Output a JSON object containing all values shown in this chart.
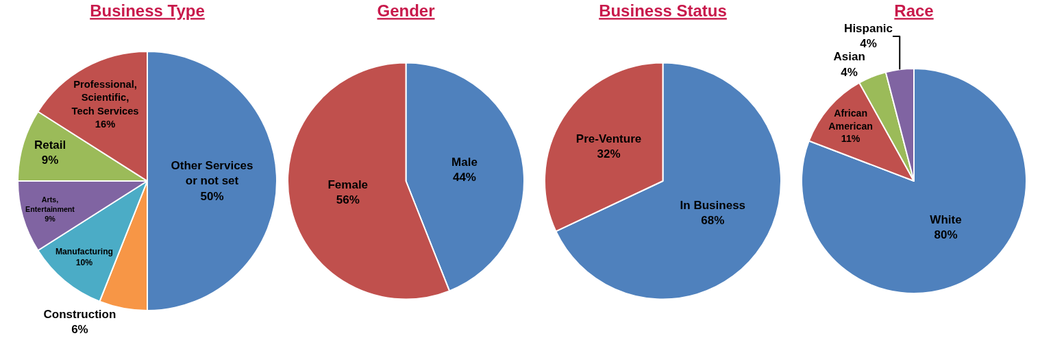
{
  "chart_data": [
    {
      "type": "pie",
      "title": "Business Type",
      "categories": [
        "Other Services or not set",
        "Construction",
        "Manufacturing",
        "Arts, Entertainment",
        "Retail",
        "Professional, Scientific, Tech Services"
      ],
      "values": [
        50,
        6,
        10,
        9,
        9,
        16
      ],
      "value_labels": [
        "50%",
        "6%",
        "10%",
        "9%",
        "9%",
        "16%"
      ],
      "colors": [
        "#4f81bd",
        "#f79646",
        "#4bacc6",
        "#8064a2",
        "#9bbb59",
        "#c0504d"
      ],
      "legend": false
    },
    {
      "type": "pie",
      "title": "Gender",
      "categories": [
        "Male",
        "Female"
      ],
      "values": [
        44,
        56
      ],
      "value_labels": [
        "44%",
        "56%"
      ],
      "colors": [
        "#4f81bd",
        "#c0504d"
      ],
      "legend": false
    },
    {
      "type": "pie",
      "title": "Business Status",
      "categories": [
        "In Business",
        "Pre-Venture"
      ],
      "values": [
        68,
        32
      ],
      "value_labels": [
        "68%",
        "32%"
      ],
      "colors": [
        "#4f81bd",
        "#c0504d"
      ],
      "legend": false
    },
    {
      "type": "pie",
      "title": "Race",
      "categories": [
        "White",
        "African American",
        "Asian",
        "Hispanic"
      ],
      "values": [
        80,
        11,
        4,
        4
      ],
      "value_labels": [
        "80%",
        "11%",
        "4%",
        "4%"
      ],
      "colors": [
        "#4f81bd",
        "#c0504d",
        "#9bbb59",
        "#8064a2"
      ],
      "legend": false
    }
  ]
}
